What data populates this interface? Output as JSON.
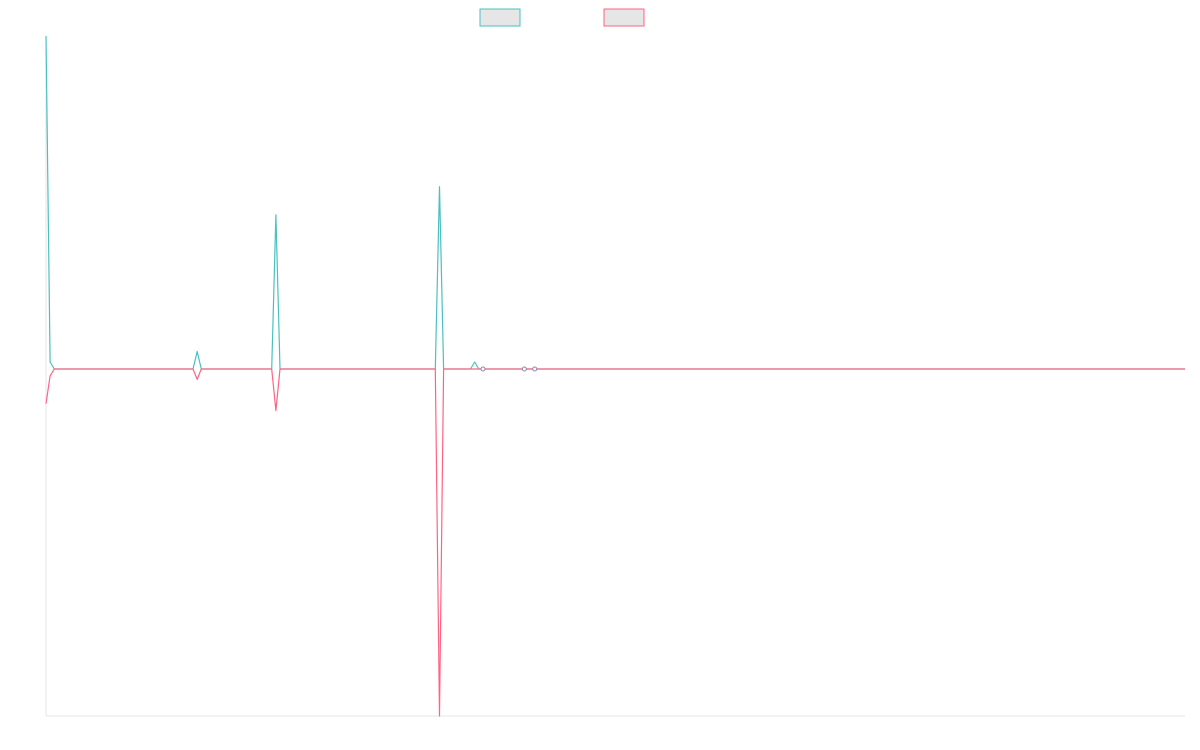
{
  "chart_data": {
    "type": "line",
    "title": "",
    "xlabel": "",
    "ylabel": "",
    "grid": false,
    "legend_placement": "top-center",
    "x_count": 111,
    "ylim": [
      -1.0,
      0.95
    ],
    "series": [
      {
        "name": "",
        "color": "#4bc0c0",
        "fill": "#e6e6e6",
        "points": [
          {
            "x": 0,
            "y": 0.95
          },
          {
            "x": 0.4,
            "y": 0.02
          },
          {
            "x": 0.8,
            "y": 0
          },
          {
            "x": 14.2,
            "y": 0
          },
          {
            "x": 14.6,
            "y": 0.05
          },
          {
            "x": 15.0,
            "y": 0
          },
          {
            "x": 21.8,
            "y": 0
          },
          {
            "x": 22.2,
            "y": 0.44
          },
          {
            "x": 22.6,
            "y": 0
          },
          {
            "x": 37.6,
            "y": 0
          },
          {
            "x": 38.0,
            "y": 0.52
          },
          {
            "x": 38.4,
            "y": 0
          },
          {
            "x": 41.0,
            "y": 0
          },
          {
            "x": 41.4,
            "y": 0.02
          },
          {
            "x": 41.8,
            "y": 0
          },
          {
            "x": 110,
            "y": 0
          }
        ]
      },
      {
        "name": "",
        "color": "#ff6384",
        "fill": "#e6e6e6",
        "points": [
          {
            "x": 0,
            "y": -0.1
          },
          {
            "x": 0.4,
            "y": -0.02
          },
          {
            "x": 0.8,
            "y": 0
          },
          {
            "x": 14.2,
            "y": 0
          },
          {
            "x": 14.6,
            "y": -0.03
          },
          {
            "x": 15.0,
            "y": 0
          },
          {
            "x": 21.8,
            "y": 0
          },
          {
            "x": 22.2,
            "y": -0.12
          },
          {
            "x": 22.6,
            "y": 0
          },
          {
            "x": 37.6,
            "y": 0
          },
          {
            "x": 38.0,
            "y": -1.0
          },
          {
            "x": 38.4,
            "y": 0
          },
          {
            "x": 110,
            "y": 0
          }
        ]
      }
    ],
    "markers": [
      {
        "x": 42.2,
        "y": 0
      },
      {
        "x": 46.2,
        "y": 0
      },
      {
        "x": 47.2,
        "y": 0
      }
    ]
  }
}
